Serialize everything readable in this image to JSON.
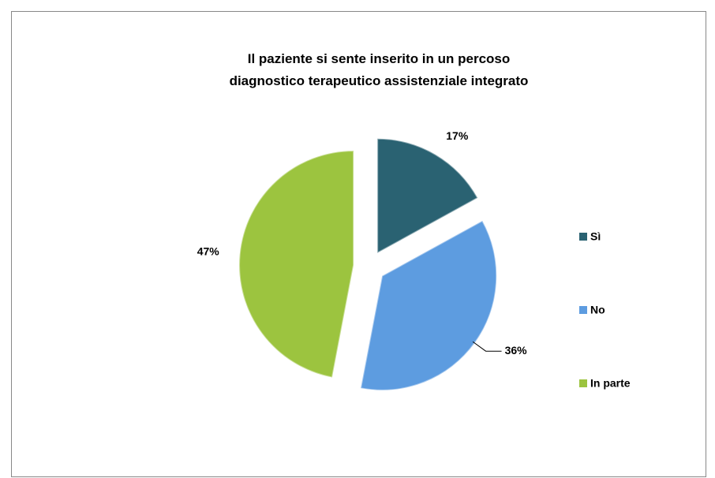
{
  "chart_data": {
    "type": "pie",
    "title": "Il paziente si sente inserito in un percoso diagnostico terapeutico assistenziale integrato",
    "categories": [
      "Sì",
      "No",
      "In parte"
    ],
    "values": [
      17,
      36,
      47
    ],
    "value_labels": [
      "17%",
      "36%",
      "47%"
    ],
    "colors": [
      "#2a6272",
      "#5d9ce0",
      "#9cc43f"
    ],
    "legend": "right"
  }
}
